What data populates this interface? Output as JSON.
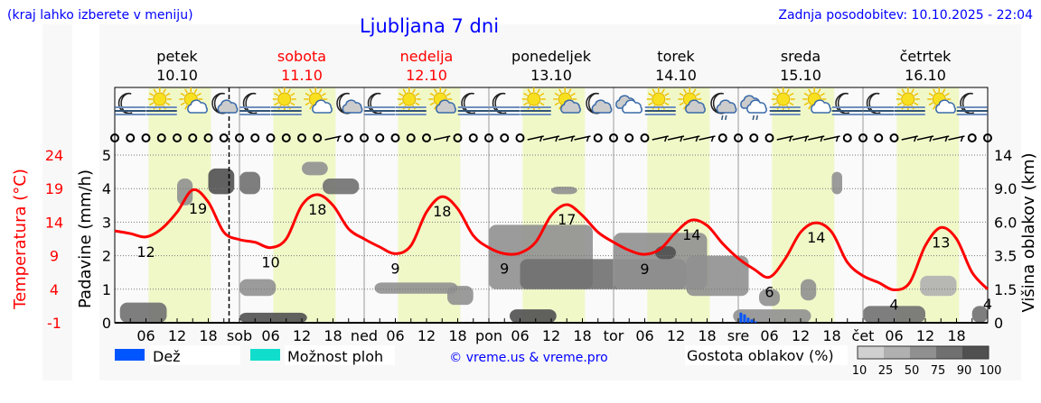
{
  "header": {
    "hint": "(kraj lahko izberete v meniju)",
    "title": "Ljubljana 7 dni",
    "updated": "Zadnja posodobitev: 10.10.2025 - 22:04"
  },
  "colors": {
    "text_blue": "#0000ff",
    "weekend_red": "#ff0000",
    "temperature": "#ff0000",
    "day_zone": "#f0f8c8",
    "rain": "#0055ff",
    "showers": "#11ddcc",
    "panel": "#f8f8f8"
  },
  "chart_data": {
    "type": "line",
    "temperature_axis": {
      "label": "Temperatura (°C)",
      "ticks": [
        "24",
        "19",
        "14",
        "9",
        "4",
        "-1"
      ],
      "range": [
        -1,
        24
      ]
    },
    "precip_axis": {
      "label": "Padavine (mm/h)",
      "ticks": [
        "0",
        "1",
        "2",
        "3",
        "4",
        "5"
      ],
      "range": [
        0,
        5
      ]
    },
    "cloud_axis": {
      "label": "Višina oblakov (km)",
      "ticks": [
        "0",
        "1.5",
        "3.5",
        "6.0",
        "9.0",
        "14"
      ]
    },
    "days": [
      {
        "name": "petek",
        "date": "10.10",
        "weekend": false
      },
      {
        "name": "sobota",
        "date": "11.10",
        "weekend": true
      },
      {
        "name": "nedelja",
        "date": "12.10",
        "weekend": true
      },
      {
        "name": "ponedeljek",
        "date": "13.10",
        "weekend": false
      },
      {
        "name": "torek",
        "date": "14.10",
        "weekend": false
      },
      {
        "name": "sreda",
        "date": "15.10",
        "weekend": false
      },
      {
        "name": "četrtek",
        "date": "16.10",
        "weekend": false
      }
    ],
    "day_abbr": [
      "",
      "sob",
      "ned",
      "pon",
      "tor",
      "sre",
      "čet"
    ],
    "hour_ticks": [
      "06",
      "12",
      "18"
    ],
    "now_hour": 22,
    "temperature_step_hours": 3,
    "temperature": [
      12.7,
      12.3,
      11.8,
      13,
      15.5,
      18.8,
      17,
      12.5,
      11.4,
      11,
      10.2,
      11.5,
      16.5,
      18.1,
      16.5,
      13,
      11.5,
      10.3,
      9.3,
      10.5,
      15.5,
      17.8,
      16,
      12,
      10.2,
      9.3,
      9.4,
      11,
      15,
      16.6,
      15,
      12.5,
      11,
      9.8,
      9.2,
      10,
      12.5,
      14.3,
      13.5,
      10.8,
      8.6,
      7,
      5.8,
      8.5,
      12.5,
      13.9,
      12.5,
      8,
      6,
      5,
      3.9,
      5,
      10.5,
      13.2,
      11.5,
      6.5,
      4
    ],
    "temperature_labels": [
      {
        "hour": 6,
        "text": "12"
      },
      {
        "hour": 16,
        "text": "19"
      },
      {
        "hour": 30,
        "text": "10"
      },
      {
        "hour": 39,
        "text": "18"
      },
      {
        "hour": 54,
        "text": "9"
      },
      {
        "hour": 63,
        "text": "18"
      },
      {
        "hour": 75,
        "text": "9"
      },
      {
        "hour": 87,
        "text": "17"
      },
      {
        "hour": 102,
        "text": "9"
      },
      {
        "hour": 111,
        "text": "14"
      },
      {
        "hour": 126,
        "text": "6"
      },
      {
        "hour": 135,
        "text": "14"
      },
      {
        "hour": 150,
        "text": "4"
      },
      {
        "hour": 159,
        "text": "13"
      },
      {
        "hour": 168,
        "text": "4"
      }
    ],
    "rain_mm_h": [
      {
        "hour": 120.5,
        "value": 0.3
      },
      {
        "hour": 121.2,
        "value": 0.25
      },
      {
        "hour": 121.9,
        "value": 0.15
      },
      {
        "hour": 122.6,
        "value": 0.1
      },
      {
        "hour": 123.3,
        "value": 0.04
      }
    ],
    "clouds": [
      {
        "h": [
          1,
          10
        ],
        "km": [
          0,
          0.9
        ],
        "density": 75
      },
      {
        "h": [
          12,
          15
        ],
        "km": [
          7.5,
          10.5
        ],
        "density": 50
      },
      {
        "h": [
          18,
          23
        ],
        "km": [
          8.5,
          12
        ],
        "density": 90
      },
      {
        "h": [
          24,
          28
        ],
        "km": [
          8.5,
          11.5
        ],
        "density": 75
      },
      {
        "h": [
          36,
          41
        ],
        "km": [
          11,
          13
        ],
        "density": 50
      },
      {
        "h": [
          40,
          47
        ],
        "km": [
          8.5,
          10.5
        ],
        "density": 75
      },
      {
        "h": [
          24,
          31
        ],
        "km": [
          1.2,
          2.1
        ],
        "density": 50
      },
      {
        "h": [
          24,
          37
        ],
        "km": [
          0,
          0.45
        ],
        "density": 90
      },
      {
        "h": [
          50,
          66
        ],
        "km": [
          1.3,
          1.9
        ],
        "density": 50
      },
      {
        "h": [
          64,
          69
        ],
        "km": [
          0.8,
          1.7
        ],
        "density": 50
      },
      {
        "h": [
          72,
          92
        ],
        "km": [
          1.5,
          5.8
        ],
        "density": 50
      },
      {
        "h": [
          78,
          110
        ],
        "km": [
          1.5,
          3.3
        ],
        "density": 75
      },
      {
        "h": [
          76,
          85
        ],
        "km": [
          0,
          0.6
        ],
        "density": 90
      },
      {
        "h": [
          84,
          89
        ],
        "km": [
          8.5,
          9.3
        ],
        "density": 50
      },
      {
        "h": [
          96,
          114
        ],
        "km": [
          1.5,
          5.2
        ],
        "density": 50
      },
      {
        "h": [
          104,
          108
        ],
        "km": [
          3.3,
          4.2
        ],
        "density": 90
      },
      {
        "h": [
          110,
          122
        ],
        "km": [
          1.2,
          3.5
        ],
        "density": 50
      },
      {
        "h": [
          119,
          134
        ],
        "km": [
          0,
          0.6
        ],
        "density": 50
      },
      {
        "h": [
          124,
          128
        ],
        "km": [
          0.75,
          1.5
        ],
        "density": 50
      },
      {
        "h": [
          132,
          135
        ],
        "km": [
          1,
          2.1
        ],
        "density": 50
      },
      {
        "h": [
          138,
          140
        ],
        "km": [
          8.5,
          11.5
        ],
        "density": 50
      },
      {
        "h": [
          144,
          156
        ],
        "km": [
          0,
          0.75
        ],
        "density": 75
      },
      {
        "h": [
          155,
          162
        ],
        "km": [
          1.2,
          2.3
        ],
        "density": 25
      },
      {
        "h": [
          165,
          168
        ],
        "km": [
          0,
          0.75
        ],
        "density": 75
      }
    ],
    "weather_icons": [
      "moon-fog",
      "sun-fog",
      "sun-cloud",
      "moon-cloud",
      "moon-fog",
      "sun-fog",
      "sun-cloud",
      "moon-cloud",
      "moon-fog",
      "sun-fog",
      "sun-cloud-gray",
      "moon-fog",
      "moon-fog",
      "sun-fog",
      "sun-cloud-gray",
      "moon-cloud",
      "cloudy",
      "sun-fog",
      "sun-cloud-gray",
      "moon-cloud-rain",
      "cloud-rain",
      "sun-fog",
      "sun-cloud",
      "moon-fog",
      "moon-fog",
      "sun-fog",
      "sun-cloud",
      "moon-fog"
    ],
    "wind": [
      "calm",
      "calm",
      "calm",
      "calm",
      "calm",
      "calm",
      "calm",
      "calm",
      "calm",
      "calm",
      "calm",
      "calm",
      "calm",
      "calm",
      "barb",
      "calm",
      "calm",
      "calm",
      "calm",
      "calm",
      "calm",
      "barb",
      "calm",
      "calm",
      "calm",
      "calm",
      "calm",
      "barb",
      "barb",
      "barb",
      "barb",
      "calm",
      "calm",
      "calm",
      "calm",
      "barb",
      "barb",
      "barb",
      "barb",
      "calm",
      "calm",
      "calm",
      "calm",
      "barb",
      "barb",
      "barb",
      "barb",
      "calm",
      "calm",
      "calm",
      "calm",
      "barb",
      "barb",
      "barb",
      "barb",
      "calm",
      "calm"
    ]
  },
  "legend": {
    "rain": "Dež",
    "showers": "Možnost ploh",
    "copyright": "© vreme.us & vreme.pro",
    "cloud_density": "Gostota oblakov (%)",
    "density_levels": [
      "10",
      "25",
      "50",
      "75",
      "90",
      "100"
    ],
    "density_colors": [
      "#d0d0d0",
      "#b0b0b0",
      "#909090",
      "#707070",
      "#505050"
    ]
  }
}
